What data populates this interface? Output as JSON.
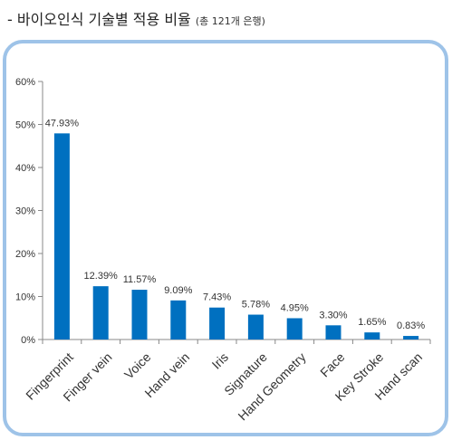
{
  "header": {
    "title": "- 바이오인식 기술별 적용 비율",
    "subtitle": "(총 121개 은행)"
  },
  "colors": {
    "bar": "#0070c0",
    "frame_border": "#9ec3e8",
    "axis": "#888888",
    "gridline": "#d9d9d9",
    "text": "#333333"
  },
  "chart_data": {
    "type": "bar",
    "title": "",
    "xlabel": "",
    "ylabel": "",
    "categories": [
      "Fingerprint",
      "Finger vein",
      "Voice",
      "Hand vein",
      "Iris",
      "Signature",
      "Hand Geometry",
      "Face",
      "Key Stroke",
      "Hand scan"
    ],
    "values": [
      47.93,
      12.39,
      11.57,
      9.09,
      7.43,
      5.78,
      4.95,
      3.3,
      1.65,
      0.83
    ],
    "data_labels": [
      "47.93%",
      "12.39%",
      "11.57%",
      "9.09%",
      "7.43%",
      "5.78%",
      "4.95%",
      "3.30%",
      "1.65%",
      "0.83%"
    ],
    "ylim": [
      0,
      60
    ],
    "yticks": [
      0,
      10,
      20,
      30,
      40,
      50,
      60
    ],
    "ytick_labels": [
      "0%",
      "10%",
      "20%",
      "30%",
      "40%",
      "50%",
      "60%"
    ],
    "grid": false,
    "legend": "none"
  }
}
